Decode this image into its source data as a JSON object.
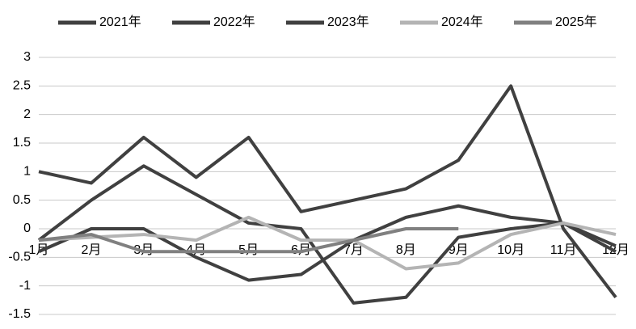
{
  "chart_data": {
    "type": "line",
    "categories": [
      "1月",
      "2月",
      "3月",
      "4月",
      "5月",
      "6月",
      "7月",
      "8月",
      "9月",
      "10月",
      "11月",
      "12月"
    ],
    "series": [
      {
        "name": "2021年",
        "color": "#404040",
        "values": [
          1,
          0.8,
          1.6,
          0.9,
          1.6,
          0.3,
          0.5,
          0.7,
          1.2,
          2.5,
          0,
          -1.2
        ]
      },
      {
        "name": "2022年",
        "color": "#404040",
        "values": [
          -0.2,
          0.5,
          1.1,
          0.6,
          0.1,
          0,
          -1.3,
          -1.2,
          -0.15,
          0,
          0.1,
          -0.4
        ]
      },
      {
        "name": "2023年",
        "color": "#404040",
        "values": [
          -0.4,
          0,
          0,
          -0.5,
          -0.9,
          -0.8,
          -0.2,
          0.2,
          0.4,
          0.2,
          0.1,
          -0.3
        ]
      },
      {
        "name": "2024年",
        "color": "#b4b4b4",
        "values": [
          -0.2,
          -0.15,
          -0.1,
          -0.2,
          0.2,
          -0.2,
          -0.2,
          -0.7,
          -0.6,
          -0.1,
          0.1,
          -0.1
        ]
      },
      {
        "name": "2025年",
        "color": "#808080",
        "values": [
          -0.2,
          -0.1,
          -0.4,
          -0.4,
          -0.4,
          -0.4,
          -0.2,
          0,
          0,
          null,
          null,
          null
        ]
      }
    ],
    "ylim": [
      -1.5,
      3
    ],
    "yticks": [
      -1.5,
      -1,
      -0.5,
      0,
      0.5,
      1,
      1.5,
      2,
      2.5,
      3
    ],
    "grid": true,
    "legend": "top"
  }
}
